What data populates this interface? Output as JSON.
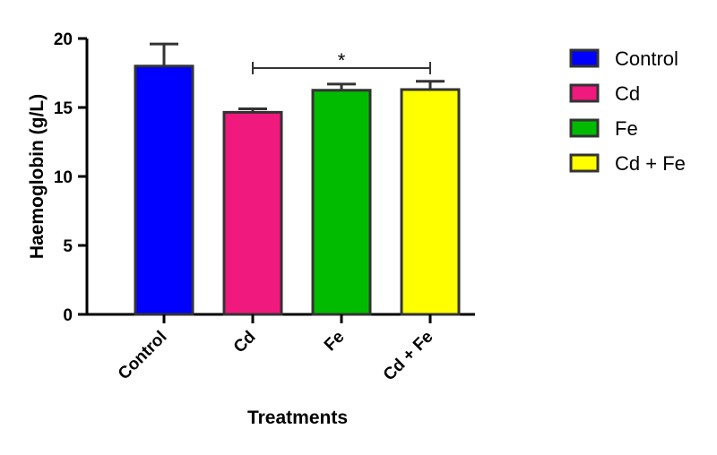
{
  "chart_data": {
    "type": "bar",
    "categories": [
      "Control",
      "Cd",
      "Fe",
      "Cd + Fe"
    ],
    "values": [
      18.0,
      14.65,
      16.25,
      16.3
    ],
    "errors": [
      1.6,
      0.25,
      0.45,
      0.6
    ],
    "colors": [
      "#0000ff",
      "#f0197d",
      "#00bb00",
      "#ffff00"
    ],
    "xlabel": "Treatments",
    "ylabel": "Haemoglobin (g/L)",
    "ylim": [
      0,
      20
    ],
    "yticks": [
      0,
      5,
      10,
      15,
      20
    ],
    "grid": false,
    "legend": {
      "position": "right",
      "entries": [
        "Control",
        "Cd",
        "Fe",
        "Cd + Fe"
      ]
    },
    "annotations": [
      {
        "type": "significance",
        "from": "Cd",
        "to": "Cd + Fe",
        "label": "*"
      }
    ]
  }
}
